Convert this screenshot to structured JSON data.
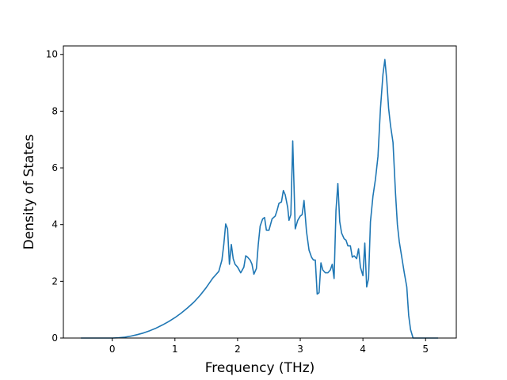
{
  "chart_data": {
    "type": "line",
    "title": "",
    "xlabel": "Frequency (THz)",
    "ylabel": "Density of States",
    "xlim": [
      -0.78,
      5.49
    ],
    "ylim": [
      0,
      10.3
    ],
    "xticks": [
      0,
      1,
      2,
      3,
      4,
      5
    ],
    "yticks": [
      0,
      2,
      4,
      6,
      8,
      10
    ],
    "grid": false,
    "line_color": "#1f77b4",
    "series": [
      {
        "x": [
          -0.5,
          -0.3,
          -0.1,
          0.0,
          0.1,
          0.2,
          0.3,
          0.4,
          0.5,
          0.6,
          0.7,
          0.8,
          0.9,
          1.0,
          1.1,
          1.2,
          1.3,
          1.4,
          1.5,
          1.6,
          1.7,
          1.75,
          1.78,
          1.81,
          1.84,
          1.87,
          1.9,
          1.93,
          1.96,
          2.0,
          2.05,
          2.1,
          2.13,
          2.16,
          2.2,
          2.23,
          2.26,
          2.3,
          2.33,
          2.36,
          2.4,
          2.43,
          2.46,
          2.5,
          2.55,
          2.6,
          2.63,
          2.66,
          2.7,
          2.73,
          2.76,
          2.8,
          2.82,
          2.85,
          2.88,
          2.92,
          2.96,
          3.0,
          3.03,
          3.06,
          3.1,
          3.14,
          3.18,
          3.21,
          3.24,
          3.27,
          3.3,
          3.33,
          3.36,
          3.4,
          3.44,
          3.48,
          3.51,
          3.54,
          3.57,
          3.6,
          3.63,
          3.66,
          3.7,
          3.73,
          3.76,
          3.8,
          3.83,
          3.86,
          3.9,
          3.93,
          3.96,
          4.0,
          4.03,
          4.06,
          4.09,
          4.12,
          4.16,
          4.2,
          4.24,
          4.28,
          4.32,
          4.35,
          4.38,
          4.41,
          4.44,
          4.48,
          4.52,
          4.55,
          4.58,
          4.62,
          4.66,
          4.7,
          4.73,
          4.76,
          4.8,
          5.0,
          5.2
        ],
        "y": [
          0.0,
          0.0,
          0.0,
          0.0,
          0.01,
          0.03,
          0.07,
          0.12,
          0.18,
          0.26,
          0.35,
          0.46,
          0.58,
          0.72,
          0.88,
          1.06,
          1.26,
          1.5,
          1.78,
          2.1,
          2.35,
          2.75,
          3.3,
          4.02,
          3.85,
          2.6,
          3.3,
          2.8,
          2.6,
          2.5,
          2.3,
          2.5,
          2.9,
          2.85,
          2.75,
          2.6,
          2.25,
          2.45,
          3.3,
          3.95,
          4.2,
          4.25,
          3.8,
          3.8,
          4.2,
          4.3,
          4.5,
          4.75,
          4.8,
          5.2,
          5.05,
          4.6,
          4.15,
          4.35,
          6.95,
          3.85,
          4.15,
          4.3,
          4.35,
          4.85,
          3.75,
          3.1,
          2.85,
          2.75,
          2.75,
          1.55,
          1.6,
          2.65,
          2.4,
          2.3,
          2.3,
          2.4,
          2.6,
          2.1,
          4.5,
          5.45,
          4.1,
          3.7,
          3.5,
          3.45,
          3.25,
          3.25,
          2.85,
          2.9,
          2.8,
          3.15,
          2.5,
          2.2,
          3.35,
          1.8,
          2.1,
          4.1,
          5.0,
          5.6,
          6.4,
          8.1,
          9.3,
          9.82,
          9.1,
          8.1,
          7.5,
          6.9,
          5.1,
          4.0,
          3.4,
          2.85,
          2.3,
          1.8,
          0.8,
          0.3,
          0.0,
          0.0,
          0.0
        ]
      }
    ]
  }
}
